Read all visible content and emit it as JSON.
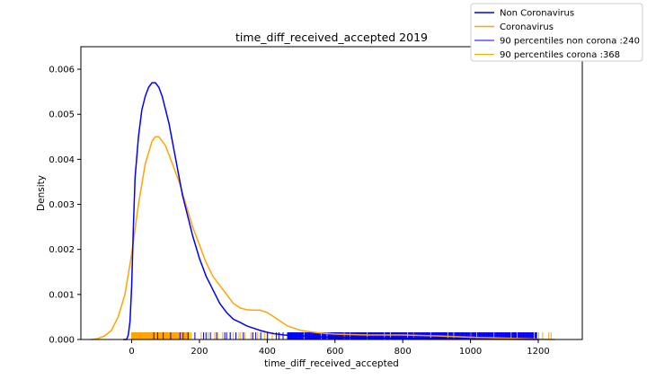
{
  "chart_data": {
    "type": "line",
    "title": "time_diff_received_accepted 2019",
    "xlabel": "time_diff_received_accepted",
    "ylabel": "Density",
    "xlim": [
      -150,
      1330
    ],
    "ylim": [
      0,
      0.0065
    ],
    "xticks": [
      0,
      200,
      400,
      600,
      800,
      1000,
      1200
    ],
    "xtick_labels": [
      "0",
      "200",
      "400",
      "600",
      "800",
      "1000",
      "1200"
    ],
    "yticks": [
      0,
      0.001,
      0.002,
      0.003,
      0.004,
      0.005,
      0.006
    ],
    "ytick_labels": [
      "0.000",
      "0.001",
      "0.002",
      "0.003",
      "0.004",
      "0.005",
      "0.006"
    ],
    "grid": false,
    "legend_position": "top-right",
    "series": [
      {
        "name": "Non Coronavirus",
        "color": "#0000ff",
        "x": [
          -25,
          -15,
          -10,
          -5,
          0,
          5,
          10,
          20,
          30,
          40,
          50,
          60,
          70,
          80,
          90,
          100,
          110,
          120,
          130,
          140,
          150,
          160,
          170,
          180,
          200,
          220,
          240,
          260,
          280,
          300,
          320,
          340,
          360,
          380,
          400,
          420,
          450,
          500,
          550,
          600,
          700,
          800,
          900,
          1000,
          1100,
          1200
        ],
        "y": [
          0.0,
          0.0,
          0.0001,
          0.0004,
          0.0012,
          0.0025,
          0.0036,
          0.0045,
          0.0051,
          0.0054,
          0.0056,
          0.0057,
          0.0057,
          0.0056,
          0.0054,
          0.0051,
          0.0048,
          0.0044,
          0.004,
          0.0036,
          0.0032,
          0.0029,
          0.0026,
          0.0023,
          0.0018,
          0.0014,
          0.0011,
          0.0008,
          0.0006,
          0.00045,
          0.00038,
          0.0003,
          0.00025,
          0.0002,
          0.00016,
          0.00013,
          0.0001,
          8e-05,
          6e-05,
          5e-05,
          4e-05,
          3e-05,
          2e-05,
          1e-05,
          5e-06,
          0.0
        ]
      },
      {
        "name": "Coronavirus",
        "color": "#ffa500",
        "x": [
          -120,
          -100,
          -80,
          -60,
          -40,
          -20,
          0,
          20,
          40,
          60,
          70,
          80,
          100,
          120,
          140,
          160,
          180,
          200,
          220,
          240,
          260,
          280,
          300,
          320,
          340,
          360,
          380,
          400,
          420,
          440,
          460,
          500,
          550,
          600,
          700,
          800,
          900,
          1000,
          1100,
          1200,
          1250
        ],
        "y": [
          0.0,
          2e-05,
          8e-05,
          0.0002,
          0.0005,
          0.001,
          0.0019,
          0.003,
          0.0039,
          0.0044,
          0.0045,
          0.0045,
          0.0043,
          0.0039,
          0.0035,
          0.003,
          0.0025,
          0.0021,
          0.0017,
          0.0014,
          0.0012,
          0.001,
          0.0008,
          0.0007,
          0.00066,
          0.00065,
          0.00065,
          0.0006,
          0.0005,
          0.0004,
          0.0003,
          0.0002,
          0.00015,
          0.00012,
          0.0001,
          0.0001,
          8e-05,
          5e-05,
          3e-05,
          1e-05,
          0.0
        ]
      }
    ],
    "legend": [
      {
        "label": "Non Coronavirus",
        "color": "#0000ff",
        "line": "thick"
      },
      {
        "label": "Coronavirus",
        "color": "#ffa500",
        "line": "thick"
      },
      {
        "label": "90 percentiles non corona :240",
        "color": "#0000ff",
        "line": "thin"
      },
      {
        "label": "90 percentiles corona :368",
        "color": "#ffa500",
        "line": "thin"
      }
    ],
    "rugs": [
      {
        "color": "#ffa500",
        "range": [
          0,
          1250
        ],
        "dense_until": 170,
        "sparse_step": 13
      },
      {
        "color": "#0000ff",
        "range": [
          0,
          1195
        ],
        "dense_from": 460,
        "sparse_step": 11
      }
    ]
  }
}
